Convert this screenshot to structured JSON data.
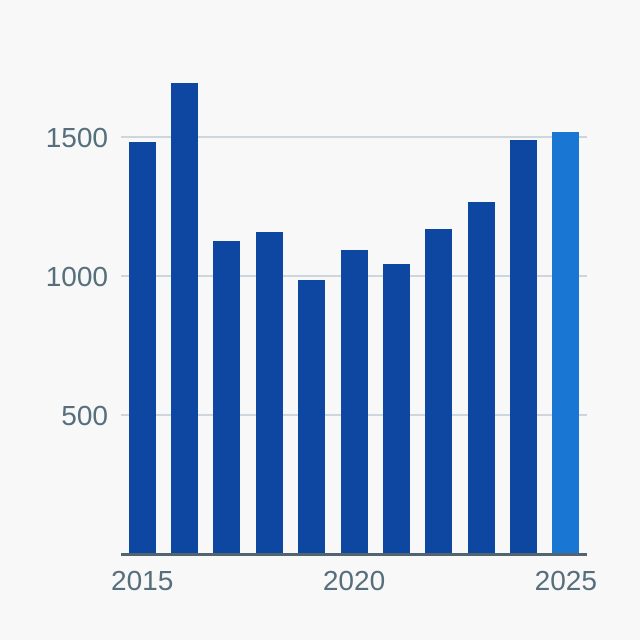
{
  "chart_data": {
    "type": "bar",
    "title": "",
    "xlabel": "",
    "ylabel": "",
    "categories": [
      "2015",
      "2016",
      "2017",
      "2018",
      "2019",
      "2020",
      "2021",
      "2022",
      "2023",
      "2024",
      "2025"
    ],
    "values": [
      1480,
      1690,
      1125,
      1155,
      985,
      1090,
      1040,
      1165,
      1265,
      1485,
      1515
    ],
    "highlight_category": "2025",
    "y_ticks": [
      {
        "label": "500",
        "value": 500
      },
      {
        "label": "1000",
        "value": 1000
      },
      {
        "label": "1500",
        "value": 1500
      }
    ],
    "x_ticks": [
      {
        "label": "2015",
        "index": 0
      },
      {
        "label": "2020",
        "index": 5
      },
      {
        "label": "2025",
        "index": 10
      }
    ],
    "ylim": [
      0,
      2000
    ],
    "grid": "horizontal",
    "legend": "none",
    "colors": {
      "bar": "#0d47a1",
      "highlight_bar": "#1976d2",
      "grid_line": "#ccd6dc",
      "axis_line": "#52646e",
      "tick_text": "#566f7c",
      "background": "#f8f8f8"
    }
  }
}
